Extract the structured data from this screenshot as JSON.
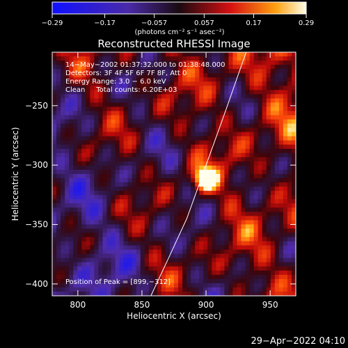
{
  "chart_data": {
    "type": "heatmap",
    "title": "Reconstructed RHESSI Image",
    "xlabel": "Heliocentric X (arcsec)",
    "ylabel": "Heliocentric Y (arcsec)",
    "xlim": [
      780,
      970
    ],
    "ylim": [
      -410,
      -205
    ],
    "x_ticks": [
      800,
      850,
      900,
      950
    ],
    "y_ticks": [
      -400,
      -350,
      -300,
      -250
    ],
    "x_tick_labels": [
      "800",
      "850",
      "900",
      "950"
    ],
    "y_tick_labels": [
      "−400",
      "−350",
      "−300",
      "−250"
    ],
    "colorbar": {
      "min": -0.29,
      "max": 0.29,
      "ticks": [
        -0.29,
        -0.17,
        -0.057,
        0.057,
        0.17,
        0.29
      ],
      "tick_labels": [
        "−0.29",
        "−0.17",
        "−0.057",
        "0.057",
        "0.17",
        "0.29"
      ],
      "units_label": "(photons cm⁻² s⁻¹ asec⁻²)"
    },
    "annotations": [
      "14−May−2002 01:37:32.000 to 01:38:48.000",
      "Detectors: 3F 4F 5F 6F 7F 8F, Att 0",
      "Energy Range: 3.0 − 6.0 keV",
      "Clean     Total counts: 6.20E+03"
    ],
    "peak_label": "Position of Peak = [899,−312]",
    "peak": [
      899,
      -312
    ],
    "limb_curve": [
      [
        857,
        -410
      ],
      [
        870,
        -380
      ],
      [
        885,
        -345
      ],
      [
        900,
        -300
      ],
      [
        915,
        -255
      ],
      [
        928,
        -215
      ],
      [
        933,
        -200
      ]
    ]
  },
  "footer": {
    "timestamp": "29−Apr−2022 04:10"
  }
}
